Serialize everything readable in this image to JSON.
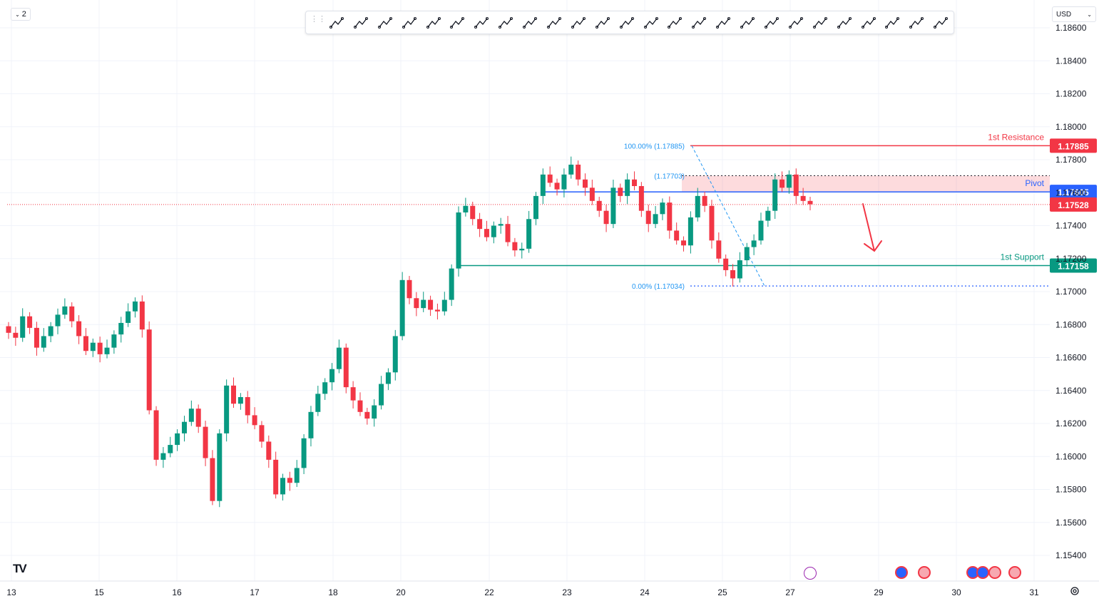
{
  "toolbar": {
    "layout_label": "2",
    "currency_label": "USD",
    "tools": [
      "parallel-channel-icon",
      "regression-trend-icon",
      "path-icon",
      "rectangle-icon",
      "polyline-icon",
      "vertical-line-icon",
      "brush-icon",
      "trend-line-icon",
      "fib-retracement-icon",
      "fib-extension-icon",
      "price-range-icon",
      "callout-icon",
      "circle-icon",
      "horizontal-ray-icon",
      "elliott-wave-icon",
      "text-icon",
      "abcd-pattern-icon",
      "arrow-up-icon",
      "arrow-down-icon",
      "xabcd-pattern-icon",
      "arrow-line-icon",
      "long-position-icon",
      "horizontal-line-icon",
      "trend-angle-icon",
      "note-icon",
      "eraser-icon"
    ]
  },
  "chart_data": {
    "type": "candlestick",
    "ylim": [
      1.153,
      1.1875
    ],
    "y_ticks": [
      "1.15400",
      "1.15600",
      "1.15800",
      "1.16000",
      "1.16200",
      "1.16400",
      "1.16600",
      "1.16800",
      "1.17000",
      "1.17200",
      "1.17400",
      "1.17600",
      "1.17800",
      "1.18000",
      "1.18200",
      "1.18400",
      "1.18600"
    ],
    "x_ticks": [
      "13",
      "15",
      "16",
      "17",
      "18",
      "20",
      "22",
      "23",
      "24",
      "25",
      "27",
      "29",
      "30",
      "31"
    ],
    "levels": [
      {
        "key": "resistance",
        "label": "1st Resistance",
        "price": 1.17885,
        "price_label": "1.17885",
        "color": "#f23645"
      },
      {
        "key": "pivot",
        "label": "Pivot",
        "price": 1.17605,
        "price_label": "1.17605",
        "color": "#2962ff"
      },
      {
        "key": "current",
        "label": "",
        "price": 1.17528,
        "price_label": "1.17528",
        "color": "#f23645"
      },
      {
        "key": "support",
        "label": "1st Support",
        "price": 1.17158,
        "price_label": "1.17158",
        "color": "#089981"
      }
    ],
    "fib": {
      "high_label": "100.00% (1.17885)",
      "mid_label": "(1.17703)",
      "low_label": "0.00% (1.17034)",
      "high": 1.17885,
      "mid": 1.17703,
      "low": 1.17034
    },
    "colors": {
      "up": "#089981",
      "down": "#f23645",
      "grid": "#f0f3fa",
      "axis_text": "#131722"
    },
    "close_series": [
      1.1675,
      1.1672,
      1.1685,
      1.1678,
      1.1666,
      1.1673,
      1.1679,
      1.1686,
      1.1691,
      1.1682,
      1.1673,
      1.1664,
      1.1669,
      1.1662,
      1.1666,
      1.1674,
      1.1681,
      1.1688,
      1.1694,
      1.1677,
      1.1628,
      1.1598,
      1.1602,
      1.1607,
      1.1614,
      1.1621,
      1.1629,
      1.1618,
      1.1599,
      1.1573,
      1.1614,
      1.1643,
      1.1632,
      1.1636,
      1.1625,
      1.1619,
      1.1609,
      1.1598,
      1.1577,
      1.1587,
      1.1584,
      1.1593,
      1.1611,
      1.1627,
      1.1638,
      1.1645,
      1.1653,
      1.1666,
      1.1642,
      1.1634,
      1.1627,
      1.1623,
      1.1631,
      1.1644,
      1.1651,
      1.1673,
      1.1707,
      1.1696,
      1.169,
      1.1695,
      1.1689,
      1.1688,
      1.1695,
      1.1714,
      1.1748,
      1.1752,
      1.1744,
      1.1738,
      1.1733,
      1.174,
      1.1741,
      1.173,
      1.1725,
      1.1726,
      1.1744,
      1.1758,
      1.1771,
      1.1766,
      1.1762,
      1.1771,
      1.1777,
      1.1768,
      1.1763,
      1.1755,
      1.1749,
      1.1741,
      1.1763,
      1.1758,
      1.1768,
      1.1764,
      1.1749,
      1.1741,
      1.1747,
      1.1754,
      1.1737,
      1.1731,
      1.1728,
      1.1745,
      1.1758,
      1.1752,
      1.1731,
      1.172,
      1.1713,
      1.1708,
      1.1719,
      1.1727,
      1.1731,
      1.1743,
      1.1749,
      1.1768,
      1.1763,
      1.1771,
      1.1758,
      1.1755,
      1.1753
    ]
  }
}
